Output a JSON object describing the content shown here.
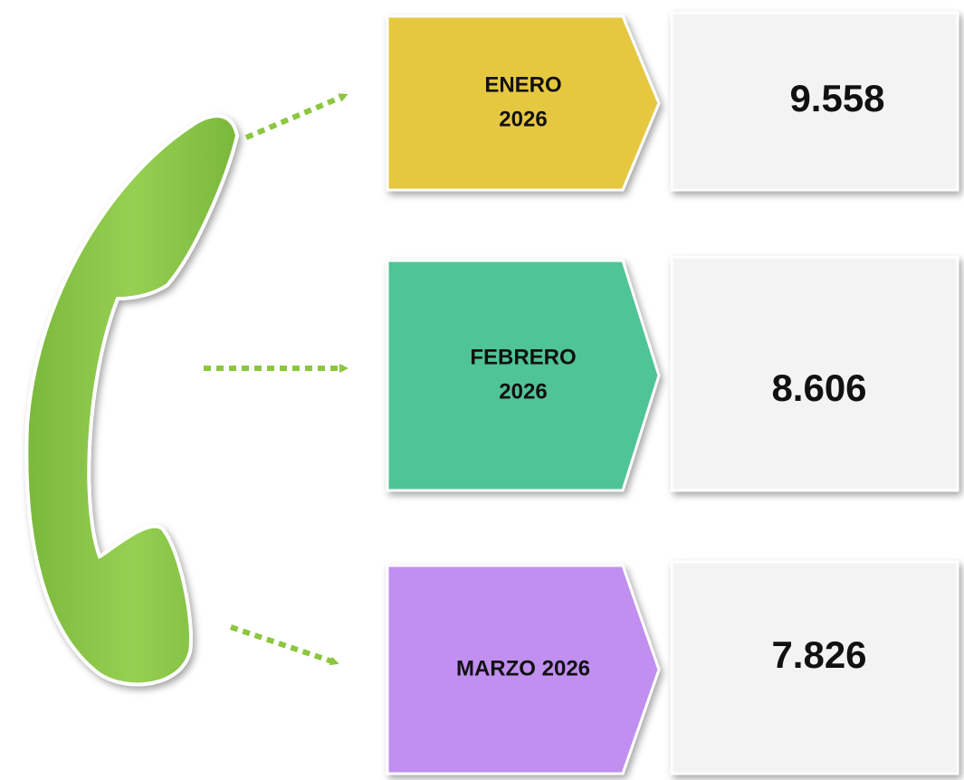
{
  "items": [
    {
      "label": [
        "ENERO",
        "2026"
      ],
      "value": "9.558"
    },
    {
      "label": [
        "FEBRERO",
        "2026"
      ],
      "value": "8.606"
    },
    {
      "label": [
        "MARZO 2026"
      ],
      "value": "7.826"
    }
  ]
}
